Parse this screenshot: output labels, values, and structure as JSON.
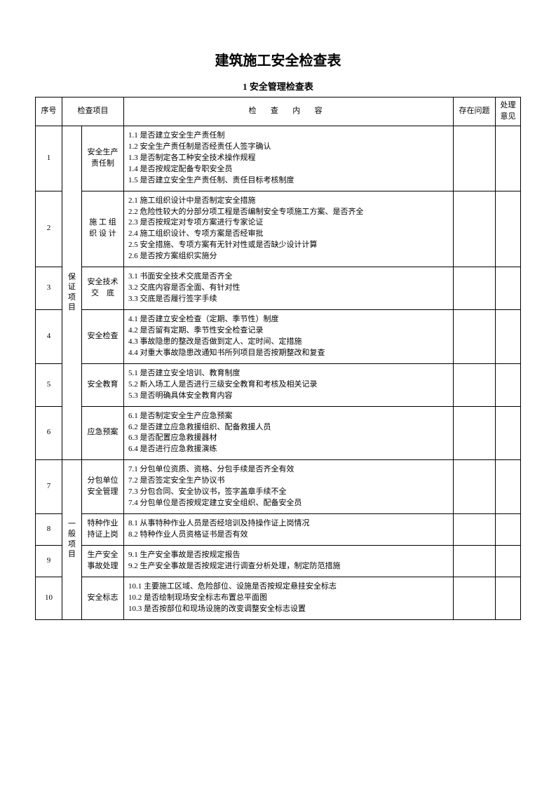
{
  "title": "建筑施工安全检查表",
  "subtitle": "1 安全管理检查表",
  "headers": {
    "seq": "序号",
    "item": "检查项目",
    "content": "检 查 内 容",
    "issue": "存在问题",
    "opinion": "处理意见"
  },
  "categories": {
    "assurance": "保证项目",
    "general": "一般项目"
  },
  "rows": [
    {
      "seq": "1",
      "item": "安全生产责任制",
      "content": "1.1 是否建立安全生产责任制\n1.2 安全生产责任制是否经责任人签字确认\n1.3 是否制定各工种安全技术操作规程\n1.4 是否按规定配备专职安全员\n1.5 是否建立安全生产责任制、责任目标考核制度"
    },
    {
      "seq": "2",
      "item": "施 工 组 织 设 计",
      "content": "2.1 施工组织设计中是否制定安全措施\n2.2 危险性较大的分部分项工程是否编制安全专项施工方案、是否齐全\n2.3 是否按规定对专项方案进行专家论证\n2.4 施工组织设计、专项方案是否经审批\n2.5 安全措施、专项方案有无针对性或是否缺少设计计算\n2.6 是否按方案组织实施分"
    },
    {
      "seq": "3",
      "item": "安全技术交　底",
      "content": "3.1 书面安全技术交底是否齐全\n3.2 交底内容是否全面、有针对性\n3.3 交底是否履行签字手续"
    },
    {
      "seq": "4",
      "item": "安全检查",
      "content": "4.1 是否建立安全检查（定期、季节性）制度\n4.2 是否留有定期、季节性安全检查记录\n4.3 事故隐患的整改是否做到定人、定时间、定措施\n4.4 对重大事故隐患改通知书所列项目是否按期整改和复查"
    },
    {
      "seq": "5",
      "item": "安全教育",
      "content": "5.1 是否建立安全培训、教育制度\n5.2 新入场工人是否进行三级安全教育和考核及相关记录\n5.3 是否明确具体安全教育内容"
    },
    {
      "seq": "6",
      "item": "应急预案",
      "content": "6.1 是否制定安全生产应急预案\n6.2 是否建立应急救援组织、配备救援人员\n6.3 是否配置应急救援器材\n6.4 是否进行应急救援演练"
    },
    {
      "seq": "7",
      "item": "分包单位安全管理",
      "content": "7.1 分包单位资质、资格、分包手续是否齐全有效\n7.2 是否签定安全生产协议书\n7.3 分包合同、安全协议书，签字盖章手续不全\n7.4 分包单位是否按规定建立安全组织、配备安全员"
    },
    {
      "seq": "8",
      "item": "特种作业持证上岗",
      "content": "8.1 从事特种作业人员是否经培训及持操作证上岗情况\n8.2 特种作业人员资格证书是否有效"
    },
    {
      "seq": "9",
      "item": "生产安全事故处理",
      "content": "9.1 生产安全事故是否按规定报告\n9.2 生产安全事故是否按规定进行调查分析处理，制定防范措施"
    },
    {
      "seq": "10",
      "item": "安全标志",
      "content": "10.1 主要施工区域、危险部位、设施是否按规定悬挂安全标志\n10.2 是否绘制现场安全标志布置总平面图\n10.3 是否按部位和现场设施的改变调整安全标志设置"
    }
  ]
}
